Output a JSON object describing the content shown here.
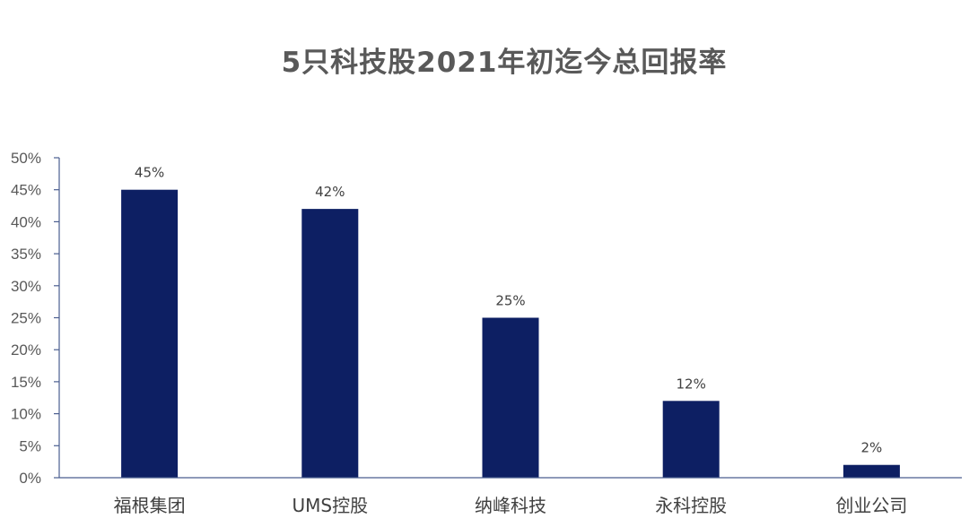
{
  "chart_data": {
    "type": "bar",
    "title": "5只科技股2021年初迄今总回报率",
    "xlabel": "",
    "ylabel": "",
    "categories": [
      "福根集团",
      "UMS控股",
      "纳峰科技",
      "永科控股",
      "创业公司"
    ],
    "values": [
      45,
      42,
      25,
      12,
      2
    ],
    "data_labels": [
      "45%",
      "42%",
      "25%",
      "12%",
      "2%"
    ],
    "ylim": [
      0,
      50
    ],
    "yticks": [
      0,
      5,
      10,
      15,
      20,
      25,
      30,
      35,
      40,
      45,
      50
    ],
    "ytick_labels": [
      "0%",
      "5%",
      "10%",
      "15%",
      "20%",
      "25%",
      "30%",
      "35%",
      "40%",
      "45%",
      "50%"
    ],
    "grid": false,
    "legend": "none",
    "bar_color": "#0d1f63",
    "axis_color": "#4a5d8f"
  }
}
